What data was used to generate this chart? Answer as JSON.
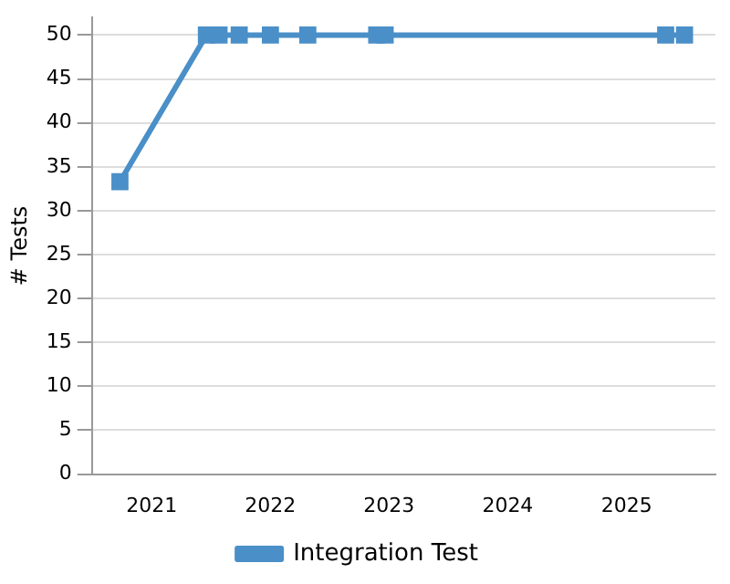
{
  "chart_data": {
    "type": "line",
    "ylabel": "# Tests",
    "x": [
      "2020-09-25",
      "2021-06-18",
      "2021-07-27",
      "2021-09-27",
      "2022-01-01",
      "2022-04-26",
      "2022-11-24",
      "2022-12-20",
      "2025-05-01",
      "2025-06-28"
    ],
    "series": [
      {
        "name": "Integration Test",
        "color": "#4a8fc8",
        "values": [
          33.3,
          50,
          50,
          50,
          50,
          50,
          50,
          50,
          50,
          50
        ]
      }
    ],
    "xlim": [
      "2020-07-01",
      "2025-10-01"
    ],
    "xticks": [
      {
        "value": "2021-01-01",
        "label": "2021"
      },
      {
        "value": "2022-01-01",
        "label": "2022"
      },
      {
        "value": "2023-01-01",
        "label": "2023"
      },
      {
        "value": "2024-01-01",
        "label": "2024"
      },
      {
        "value": "2025-01-01",
        "label": "2025"
      }
    ],
    "ylim": [
      0,
      52
    ],
    "yticks": [
      0,
      5,
      10,
      15,
      20,
      25,
      30,
      35,
      40,
      45,
      50
    ],
    "grid": "y",
    "legend": "bottom",
    "marker": "square",
    "line_style": "solid"
  }
}
